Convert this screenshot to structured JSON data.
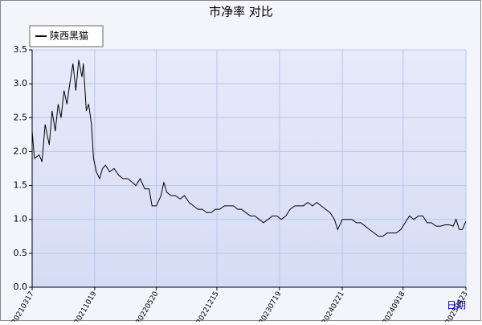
{
  "chart_data": {
    "type": "line",
    "title": "市净率  对比",
    "x_label": "日期",
    "x": [
      "20210317",
      "20210325",
      "20210410",
      "20210420",
      "20210501",
      "20210515",
      "20210525",
      "20210605",
      "20210615",
      "20210625",
      "20210705",
      "20210715",
      "20210725",
      "20210805",
      "20210815",
      "20210825",
      "20210905",
      "20210910",
      "20210920",
      "20210928",
      "20211008",
      "20211015",
      "20211025",
      "20211105",
      "20211115",
      "20211125",
      "20211210",
      "20211225",
      "20220110",
      "20220125",
      "20220210",
      "20220225",
      "20220310",
      "20220325",
      "20220410",
      "20220425",
      "20220505",
      "20220520",
      "20220605",
      "20220615",
      "20220625",
      "20220710",
      "20220725",
      "20220810",
      "20220825",
      "20220910",
      "20220925",
      "20221010",
      "20221025",
      "20221110",
      "20221125",
      "20221210",
      "20221225",
      "20230110",
      "20230125",
      "20230210",
      "20230225",
      "20230310",
      "20230325",
      "20230410",
      "20230425",
      "20230510",
      "20230525",
      "20230610",
      "20230625",
      "20230710",
      "20230725",
      "20230810",
      "20230825",
      "20230910",
      "20230925",
      "20231010",
      "20231025",
      "20231110",
      "20231125",
      "20231210",
      "20231225",
      "20240110",
      "20240125",
      "20240205",
      "20240221",
      "20240310",
      "20240325",
      "20240410",
      "20240425",
      "20240510",
      "20240525",
      "20240610",
      "20240625",
      "20240710",
      "20240725",
      "20240810",
      "20240825",
      "20240910",
      "20240925",
      "20241010",
      "20241025",
      "20241110",
      "20241125",
      "20241210",
      "20241225",
      "20250110",
      "20250125",
      "20250210",
      "20250225",
      "20250310",
      "20250320",
      "20250331",
      "20250410",
      "20250423"
    ],
    "series": [
      {
        "name": "陕西黑猫",
        "color": "#000000",
        "values": [
          2.3,
          1.9,
          1.95,
          1.85,
          2.4,
          2.1,
          2.6,
          2.3,
          2.7,
          2.5,
          2.9,
          2.7,
          3.0,
          3.3,
          2.9,
          3.35,
          3.1,
          3.3,
          2.6,
          2.7,
          2.4,
          1.9,
          1.7,
          1.6,
          1.75,
          1.8,
          1.7,
          1.75,
          1.65,
          1.6,
          1.6,
          1.55,
          1.5,
          1.6,
          1.45,
          1.45,
          1.2,
          1.2,
          1.35,
          1.55,
          1.4,
          1.35,
          1.35,
          1.3,
          1.35,
          1.25,
          1.2,
          1.15,
          1.15,
          1.1,
          1.1,
          1.15,
          1.15,
          1.2,
          1.2,
          1.2,
          1.15,
          1.15,
          1.1,
          1.05,
          1.05,
          1.0,
          0.95,
          1.0,
          1.05,
          1.05,
          1.0,
          1.05,
          1.15,
          1.2,
          1.2,
          1.2,
          1.25,
          1.2,
          1.25,
          1.2,
          1.15,
          1.1,
          1.0,
          0.85,
          1.0,
          1.0,
          1.0,
          0.95,
          0.95,
          0.9,
          0.85,
          0.8,
          0.75,
          0.75,
          0.8,
          0.8,
          0.8,
          0.85,
          0.95,
          1.05,
          1.0,
          1.05,
          1.05,
          0.95,
          0.95,
          0.9,
          0.9,
          0.92,
          0.92,
          0.9,
          1.0,
          0.85,
          0.85,
          0.97
        ]
      }
    ],
    "xlim": [
      "20210317",
      "20250423"
    ],
    "xticks": [
      "20210317",
      "20211019",
      "20220520",
      "20221215",
      "20230719",
      "20240221",
      "20240918",
      "20250423"
    ],
    "ylim": [
      0,
      3.5
    ],
    "yticks": [
      {
        "value": 0,
        "label": "0.0"
      },
      0.5,
      {
        "value": 1,
        "label": "1.0"
      },
      1.5,
      {
        "value": 2,
        "label": "2.0"
      },
      2.5,
      {
        "value": 3,
        "label": "3.0"
      },
      3.5
    ],
    "grid": true
  }
}
